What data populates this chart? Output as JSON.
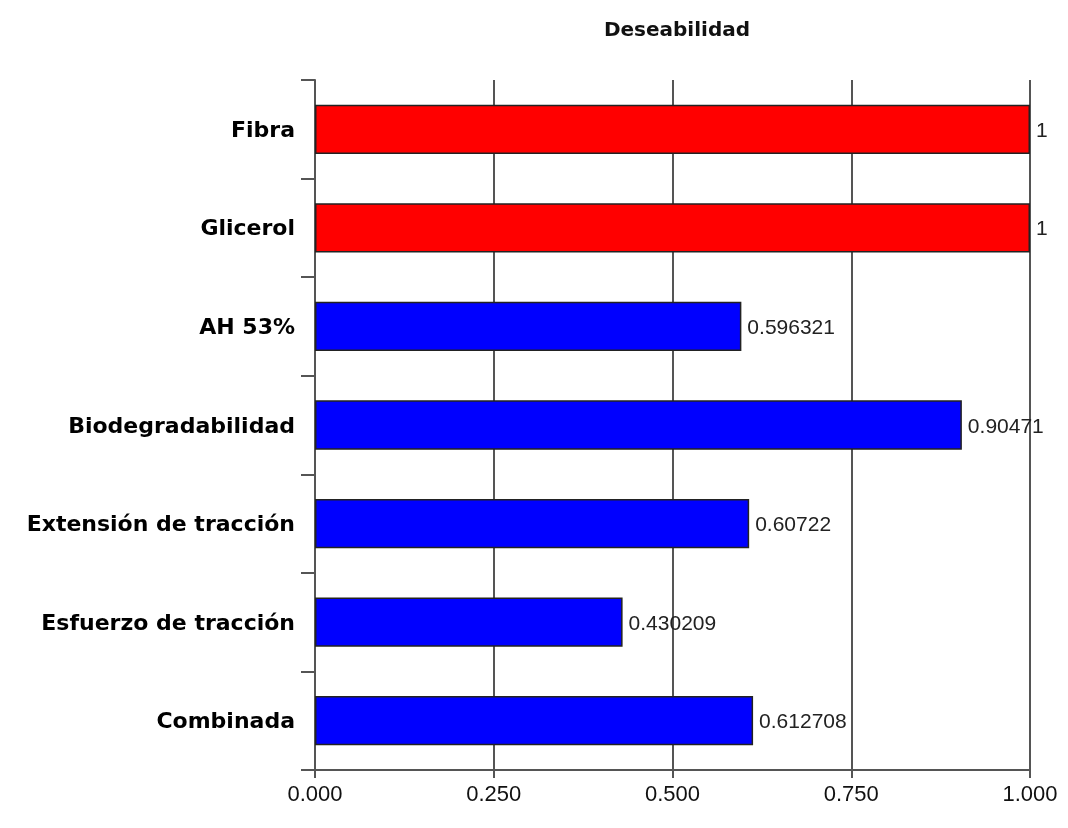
{
  "chart_data": {
    "type": "bar",
    "orientation": "horizontal",
    "title": "Deseabilidad",
    "categories": [
      "Fibra",
      "Glicerol",
      "AH 53%",
      "Biodegradabilidad",
      "Extensión de tracción",
      "Esfuerzo de tracción",
      "Combinada"
    ],
    "values": [
      1,
      1,
      0.596321,
      0.90471,
      0.60722,
      0.430209,
      0.612708
    ],
    "colors": [
      "#ff0000",
      "#ff0000",
      "#0000ff",
      "#0000ff",
      "#0000ff",
      "#0000ff",
      "#0000ff"
    ],
    "xlim": [
      0,
      1
    ],
    "xticks": [
      {
        "value": 0,
        "label": "0.000"
      },
      {
        "value": 0.25,
        "label": "0.250"
      },
      {
        "value": 0.5,
        "label": "0.500"
      },
      {
        "value": 0.75,
        "label": "0.750"
      },
      {
        "value": 1,
        "label": "1.000"
      }
    ],
    "data_labels": true,
    "grid": "x"
  }
}
